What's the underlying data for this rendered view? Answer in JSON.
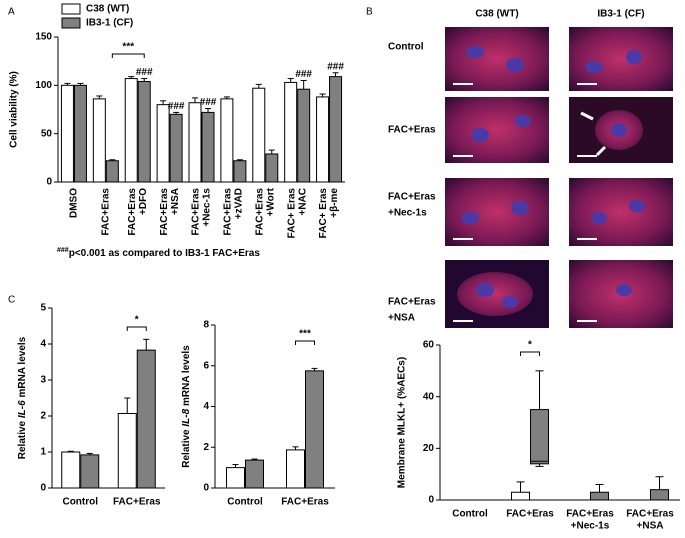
{
  "chart_data": [
    {
      "type": "bar",
      "panel": "A",
      "ylabel": "Cell viability (%)",
      "ylim": [
        0,
        150
      ],
      "yticks": [
        0,
        50,
        100,
        150
      ],
      "categories": [
        [
          "DMSO"
        ],
        [
          "FAC+Eras"
        ],
        [
          "FAC+Eras",
          "+DFO"
        ],
        [
          "FAC+Eras",
          "+NSA"
        ],
        [
          "FAC+Eras",
          "+Nec-1s"
        ],
        [
          "FAC+Eras",
          "+zVAD"
        ],
        [
          "FAC+Eras",
          "+Wort"
        ],
        [
          "FAC+ Eras",
          "+NAC"
        ],
        [
          "FAC+ Eras",
          "+β-me"
        ]
      ],
      "series": [
        {
          "name": "C38 (WT)",
          "color": "#ffffff",
          "values": [
            100,
            86,
            107,
            80,
            82,
            86,
            97,
            103,
            88
          ],
          "errors": [
            2,
            3,
            2,
            4,
            5,
            2,
            4,
            4,
            3
          ]
        },
        {
          "name": "IB3-1 (CF)",
          "color": "#808080",
          "values": [
            100,
            22,
            104,
            70,
            72,
            22,
            29,
            96,
            109
          ],
          "errors": [
            2,
            1,
            3,
            2,
            4,
            1,
            4,
            9,
            4
          ],
          "significance": [
            null,
            null,
            "###",
            "###",
            "###",
            null,
            null,
            "###",
            "###"
          ]
        }
      ],
      "annotation": "***",
      "footnote": [
        "###",
        "p<0.001 as compared to IB3-1 FAC+Eras"
      ]
    },
    {
      "type": "image-grid",
      "panel": "B",
      "columns": [
        "C38 (WT)",
        "IB3-1 (CF)"
      ],
      "rows": [
        [
          "Control"
        ],
        [
          "FAC+Eras"
        ],
        [
          "FAC+Eras",
          "+Nec-1s"
        ],
        [
          "FAC+Eras",
          "+NSA"
        ]
      ]
    },
    {
      "type": "box",
      "ylabel": "Membrane MLKL+ (%AECs)",
      "ylim": [
        0,
        60
      ],
      "yticks": [
        0,
        20,
        40,
        60
      ],
      "categories": [
        [
          "Control"
        ],
        [
          "FAC+Eras"
        ],
        [
          "FAC+Eras",
          "+Nec-1s"
        ],
        [
          "FAC+Eras",
          "+NSA"
        ]
      ],
      "series": [
        {
          "color": "#ffffff",
          "values": [
            [
              0,
              0,
              0,
              0,
              0
            ],
            [
              0,
              0,
              0,
              3,
              7
            ],
            [
              0,
              0,
              0,
              0,
              0
            ],
            [
              0,
              0,
              0,
              0,
              0
            ]
          ]
        },
        {
          "color": "#808080",
          "values": [
            [
              0,
              0,
              0,
              0,
              0
            ],
            [
              13,
              14,
              15,
              35,
              50
            ],
            [
              0,
              0,
              0,
              3,
              6
            ],
            [
              0,
              0,
              0,
              4,
              9
            ]
          ]
        }
      ],
      "annotation": "*"
    },
    {
      "type": "bar",
      "panel": "C",
      "ylabel": [
        "Relative ",
        "IL-6",
        " mRNA levels"
      ],
      "ylim": [
        0,
        5
      ],
      "yticks": [
        0,
        1,
        2,
        3,
        4,
        5
      ],
      "categories": [
        [
          "Control"
        ],
        [
          "FAC+Eras"
        ]
      ],
      "series": [
        {
          "color": "#ffffff",
          "values": [
            1.0,
            2.07
          ],
          "errors": [
            0.02,
            0.43
          ]
        },
        {
          "color": "#808080",
          "values": [
            0.92,
            3.83
          ],
          "errors": [
            0.04,
            0.3
          ]
        }
      ],
      "annotation": "*"
    },
    {
      "type": "bar",
      "ylabel": [
        "Relative ",
        "IL-8",
        " mRNA levels"
      ],
      "ylim": [
        0,
        8
      ],
      "yticks": [
        0,
        2,
        4,
        6,
        8
      ],
      "categories": [
        [
          "Control"
        ],
        [
          "FAC+Eras"
        ]
      ],
      "series": [
        {
          "color": "#ffffff",
          "values": [
            1.0,
            1.87
          ],
          "errors": [
            0.15,
            0.15
          ]
        },
        {
          "color": "#808080",
          "values": [
            1.37,
            5.75
          ],
          "errors": [
            0.05,
            0.12
          ]
        }
      ],
      "annotation": "***"
    }
  ]
}
